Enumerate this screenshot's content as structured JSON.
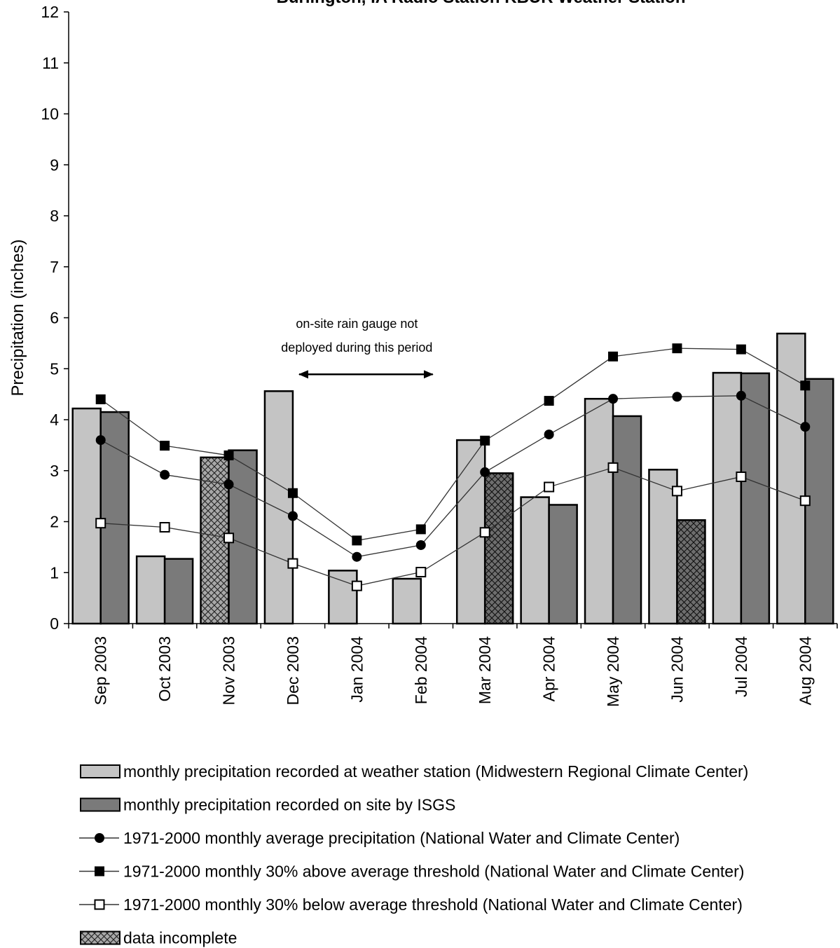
{
  "chart_data": {
    "type": "bar",
    "title": "Burlington, IA Radio Station KBUR Weather Station",
    "ylabel": "Precipitation (inches)",
    "xlabel": "",
    "ylim": [
      0,
      12
    ],
    "yticks": [
      0,
      1,
      2,
      3,
      4,
      5,
      6,
      7,
      8,
      9,
      10,
      11,
      12
    ],
    "grid": false,
    "legend_placement": "bottom",
    "categories": [
      "Sep 2003",
      "Oct 2003",
      "Nov 2003",
      "Dec 2003",
      "Jan 2004",
      "Feb 2004",
      "Mar 2004",
      "Apr 2004",
      "May 2004",
      "Jun 2004",
      "Jul 2004",
      "Aug 2004"
    ],
    "series": [
      {
        "name": "monthly precipitation recorded at weather station (Midwestern Regional Climate Center)",
        "kind": "bar",
        "color": "#c4c4c4",
        "values": [
          4.22,
          1.32,
          3.26,
          4.56,
          1.04,
          0.88,
          3.6,
          2.48,
          4.41,
          3.02,
          4.92,
          5.69
        ],
        "incomplete": [
          false,
          false,
          true,
          false,
          false,
          false,
          false,
          false,
          false,
          false,
          false,
          false
        ]
      },
      {
        "name": "monthly precipitation recorded on site by ISGS",
        "kind": "bar",
        "color": "#7a7a7a",
        "values": [
          4.15,
          1.27,
          3.4,
          null,
          null,
          null,
          2.95,
          2.33,
          4.07,
          2.03,
          4.91,
          4.8
        ],
        "incomplete": [
          false,
          false,
          false,
          false,
          false,
          false,
          true,
          false,
          false,
          true,
          false,
          false
        ]
      },
      {
        "name": "1971-2000 monthly average precipitation (National Water and Climate Center)",
        "kind": "line",
        "marker": "filled-circle",
        "values": [
          3.6,
          2.92,
          2.73,
          2.11,
          1.31,
          1.54,
          2.97,
          3.71,
          4.41,
          4.45,
          4.47,
          3.86
        ]
      },
      {
        "name": "1971-2000 monthly 30% above average threshold  (National Water and Climate Center)",
        "kind": "line",
        "marker": "filled-square",
        "values": [
          4.4,
          3.49,
          3.3,
          2.56,
          1.63,
          1.85,
          3.59,
          4.37,
          5.24,
          5.4,
          5.38,
          4.67
        ]
      },
      {
        "name": "1971-2000 monthly 30% below average threshold (National Water and Climate Center)",
        "kind": "line",
        "marker": "open-square",
        "values": [
          1.97,
          1.89,
          1.68,
          1.18,
          0.74,
          1.01,
          1.79,
          2.68,
          3.06,
          2.6,
          2.88,
          2.41
        ]
      }
    ],
    "hatch_legend": "data incomplete",
    "annotation": {
      "lines": [
        "on-site rain gauge not",
        "deployed during this period"
      ],
      "arrow_from": "Dec 2003",
      "arrow_to": "Feb 2004"
    }
  }
}
